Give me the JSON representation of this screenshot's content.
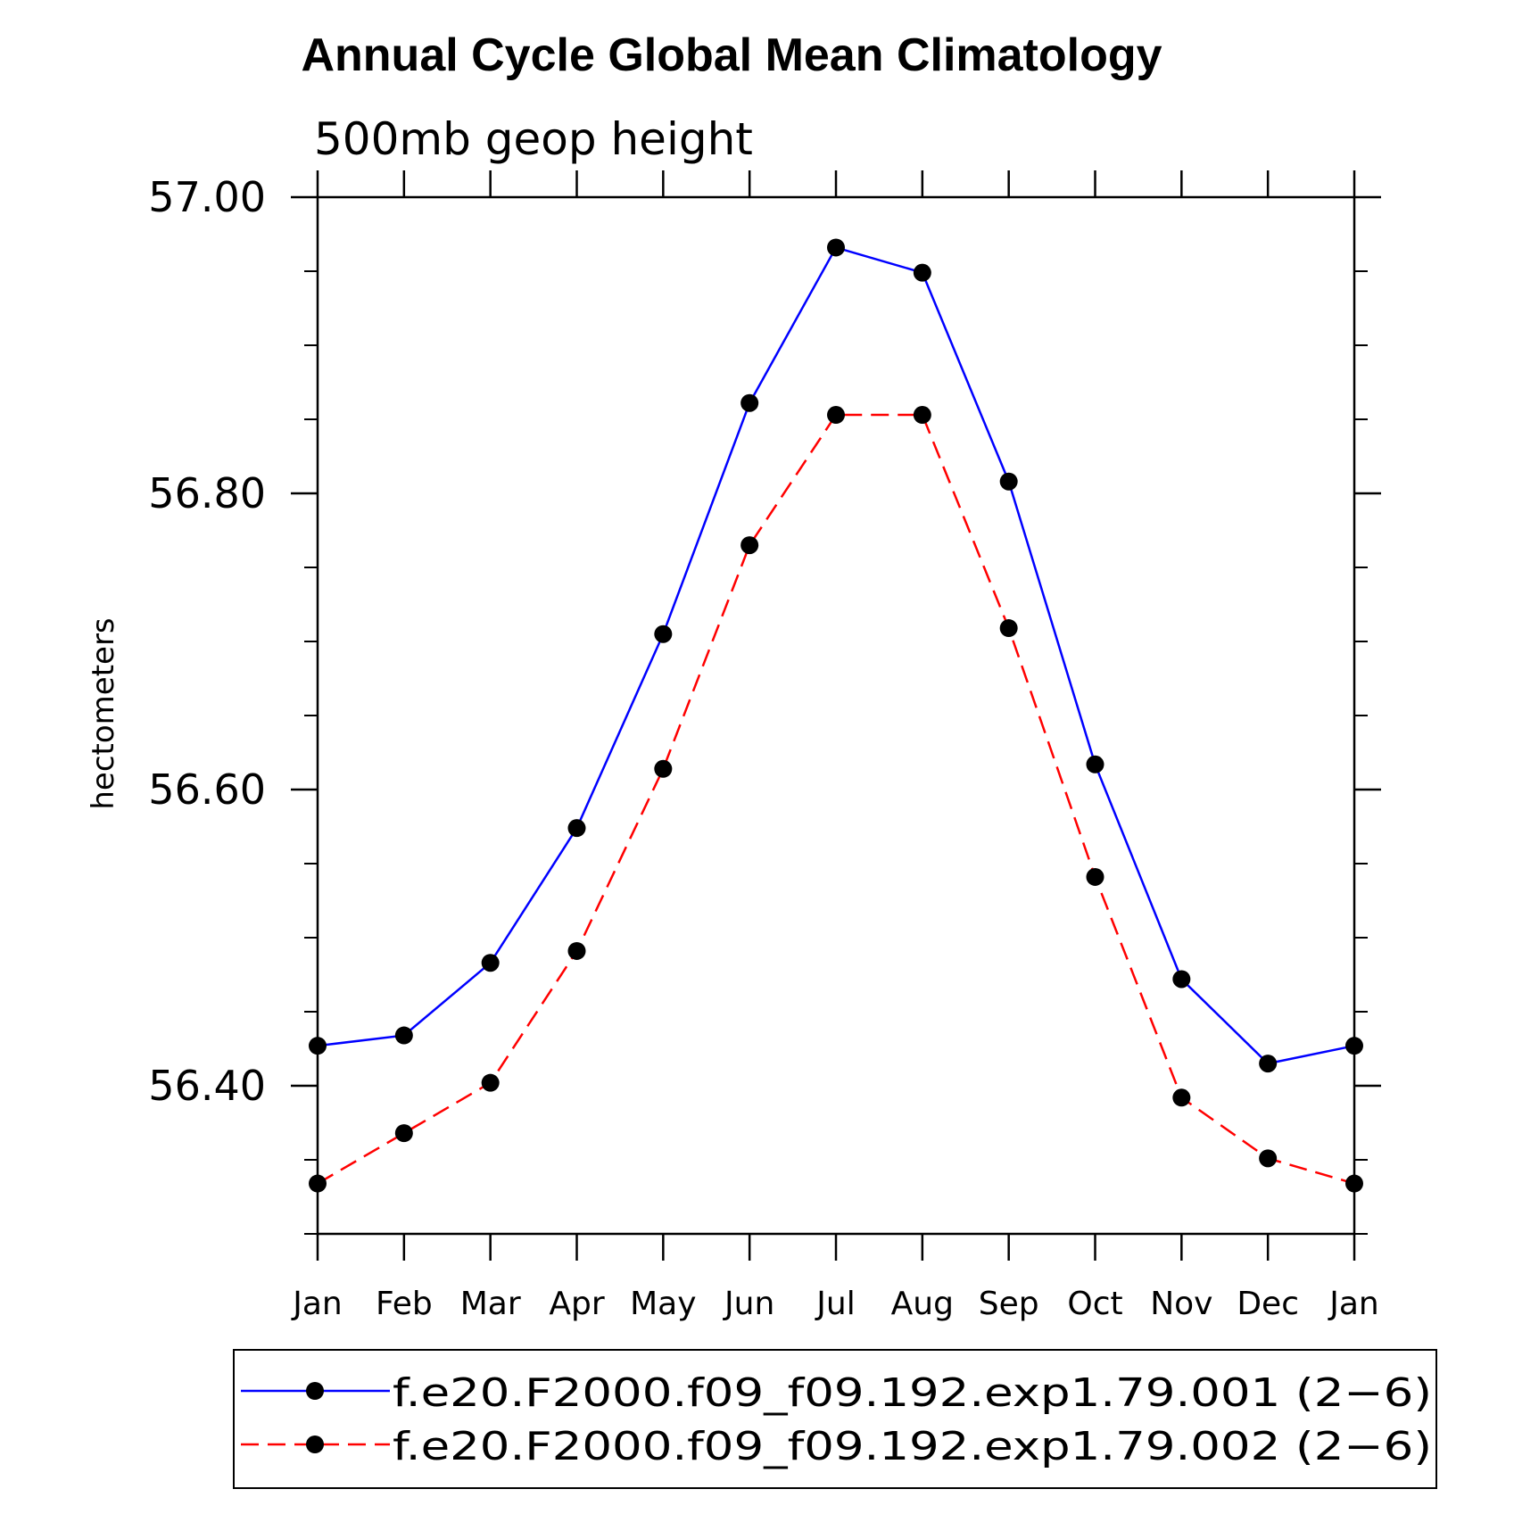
{
  "chart_data": {
    "type": "line",
    "title": "Annual Cycle Global Mean Climatology",
    "subtitle": "500mb geop height",
    "ylabel": "hectometers",
    "xlabel": "",
    "categories": [
      "Jan",
      "Feb",
      "Mar",
      "Apr",
      "May",
      "Jun",
      "Jul",
      "Aug",
      "Sep",
      "Oct",
      "Nov",
      "Dec",
      "Jan"
    ],
    "ylim": [
      56.3,
      57.0
    ],
    "yticks_major": [
      56.4,
      56.6,
      56.8,
      57.0
    ],
    "ytick_labels": [
      "56.40",
      "56.60",
      "56.80",
      "57.00"
    ],
    "yminor_step": 0.05,
    "grid": false,
    "legend_position": "bottom",
    "series": [
      {
        "name": "f.e20.F2000.f09_f09.192.exp1.79.001 (2−6)",
        "color": "#0000ff",
        "dash": "solid",
        "marker": "filled-circle",
        "values": [
          56.427,
          56.434,
          56.483,
          56.574,
          56.705,
          56.861,
          56.966,
          56.949,
          56.808,
          56.617,
          56.472,
          56.415,
          56.427
        ]
      },
      {
        "name": "f.e20.F2000.f09_f09.192.exp1.79.002 (2−6)",
        "color": "#ff0000",
        "dash": "dashed",
        "marker": "filled-circle",
        "values": [
          56.334,
          56.368,
          56.402,
          56.491,
          56.614,
          56.765,
          56.853,
          56.853,
          56.709,
          56.541,
          56.392,
          56.351,
          56.334
        ]
      }
    ]
  }
}
